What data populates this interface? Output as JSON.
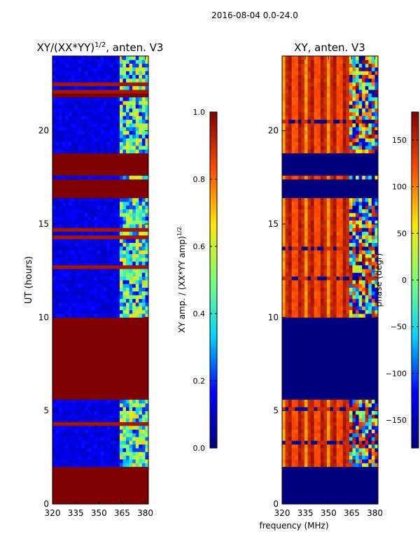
{
  "figure_title": "2016-08-04 0.0-24.0",
  "shared_xlabel": "frequency (MHz)",
  "colormap": [
    "#00007f",
    "#0000ff",
    "#00d5ff",
    "#7dff7a",
    "#ffe600",
    "#ff4800",
    "#7f0000"
  ],
  "colors": {
    "background": "#ffffff",
    "axes": "#000000",
    "masked": "#7f0000",
    "low": "#00007f"
  },
  "chart_data": [
    {
      "type": "heatmap",
      "id": "amplitude",
      "title_main": "XY/(XX*YY)",
      "title_sup": "1/2",
      "title_tail": ", anten. V3",
      "ylabel": "UT (hours)",
      "xlim": [
        320,
        382
      ],
      "ylim": [
        0,
        24
      ],
      "xticks": [
        320,
        335,
        350,
        365,
        380
      ],
      "yticks": [
        0,
        5,
        10,
        15,
        20
      ],
      "masked_hours": [
        [
          0,
          1.95
        ],
        [
          5.55,
          9.9
        ],
        [
          16.25,
          17.25
        ],
        [
          17.45,
          18.65
        ],
        [
          21.8,
          22.0
        ]
      ],
      "colorbar": {
        "label_main": "XY amp. / (XX*YY amp)",
        "label_sup": "1/2",
        "range": [
          0.0,
          1.0
        ],
        "ticks": [
          "0.0",
          "0.2",
          "0.4",
          "0.6",
          "0.8",
          "1.0"
        ]
      }
    },
    {
      "type": "heatmap",
      "id": "phase",
      "title_main": "XY, anten. V3",
      "title_sup": "",
      "title_tail": "",
      "ylabel": "",
      "xlim": [
        320,
        382
      ],
      "ylim": [
        0,
        24
      ],
      "xticks": [
        320,
        335,
        350,
        365,
        380
      ],
      "yticks": [
        0,
        5,
        10,
        15,
        20
      ],
      "masked_hours": [
        [
          0,
          1.95
        ],
        [
          5.55,
          9.9
        ],
        [
          16.25,
          17.25
        ],
        [
          17.45,
          18.65
        ]
      ],
      "colorbar": {
        "label_main": "phase (degr)",
        "label_sup": "",
        "range": [
          -180,
          180
        ],
        "ticks": [
          "−150",
          "−100",
          "−50",
          "0",
          "50",
          "100",
          "150"
        ]
      }
    }
  ]
}
